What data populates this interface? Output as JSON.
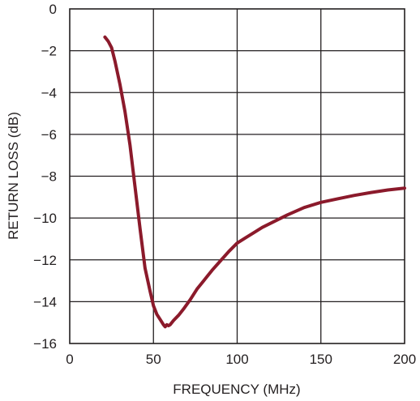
{
  "chart_data": {
    "type": "line",
    "xlabel": "FREQUENCY (MHz)",
    "ylabel": "RETURN LOSS (dB)",
    "xlim": [
      0,
      200
    ],
    "ylim": [
      -16,
      0
    ],
    "x_ticks": [
      0,
      50,
      100,
      150,
      200
    ],
    "y_ticks": [
      0,
      -2,
      -4,
      -6,
      -8,
      -10,
      -12,
      -14,
      -16
    ],
    "x_tick_labels": [
      "0",
      "50",
      "100",
      "150",
      "200"
    ],
    "y_tick_labels": [
      "0",
      "−2",
      "−4",
      "−6",
      "−8",
      "−10",
      "−12",
      "−14",
      "−16"
    ],
    "grid": true,
    "line_color": "#8b1a2b",
    "series": [
      {
        "x": [
          21,
          23,
          25,
          27,
          30,
          33,
          36,
          39,
          42,
          45,
          48,
          50,
          52,
          54,
          56,
          57,
          58,
          59,
          60,
          62,
          65,
          68,
          72,
          76,
          80,
          85,
          90,
          95,
          100,
          105,
          110,
          115,
          120,
          130,
          140,
          150,
          160,
          170,
          180,
          190,
          200
        ],
        "y": [
          -1.35,
          -1.55,
          -1.85,
          -2.5,
          -3.6,
          -4.9,
          -6.5,
          -8.5,
          -10.5,
          -12.4,
          -13.5,
          -14.2,
          -14.6,
          -14.85,
          -15.1,
          -15.2,
          -15.1,
          -15.15,
          -15.1,
          -14.9,
          -14.65,
          -14.35,
          -13.9,
          -13.4,
          -13.0,
          -12.5,
          -12.05,
          -11.6,
          -11.2,
          -10.95,
          -10.7,
          -10.45,
          -10.25,
          -9.85,
          -9.5,
          -9.25,
          -9.08,
          -8.92,
          -8.78,
          -8.66,
          -8.57
        ]
      }
    ]
  }
}
